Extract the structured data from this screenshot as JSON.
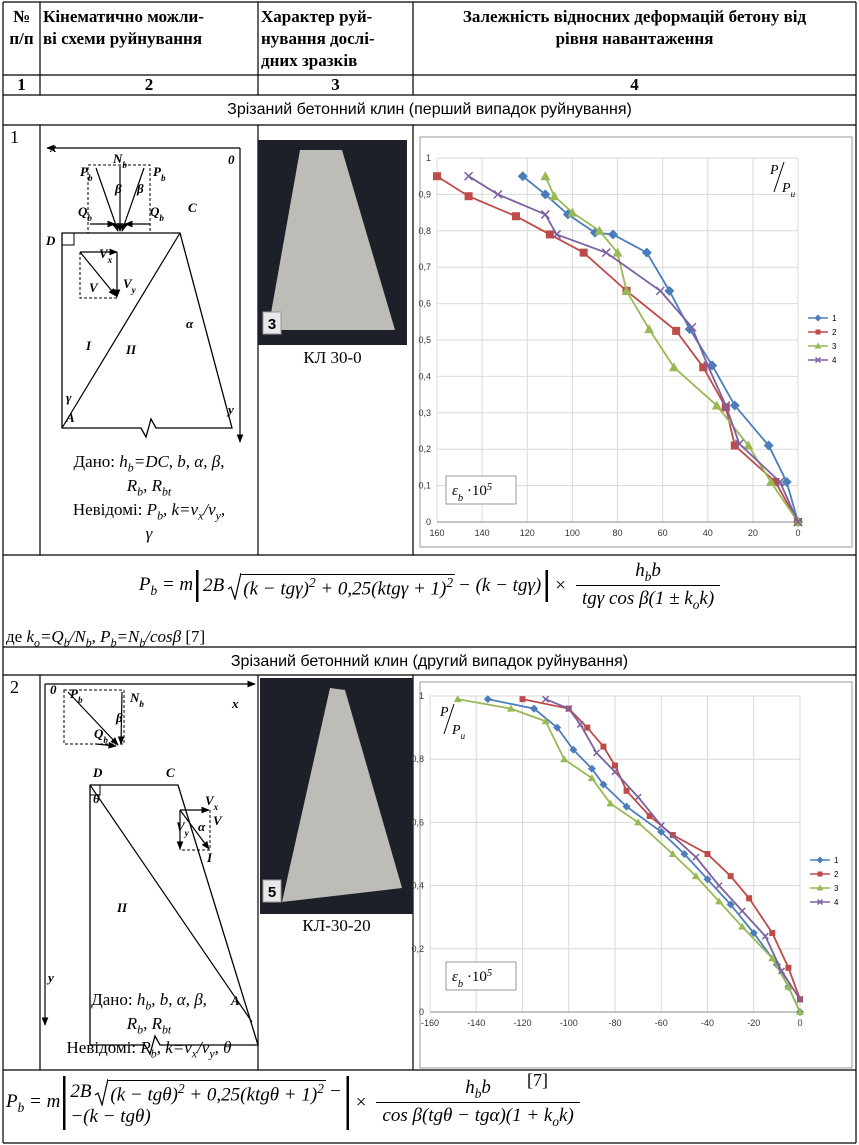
{
  "header": {
    "cells": [
      [
        "№",
        "п/п"
      ],
      [
        "Кінематично можли-",
        "ві схеми руйнування"
      ],
      [
        "Характер руй-",
        "нування дослі-",
        "дних зразків"
      ],
      [
        "Залежність відносних деформацій бетону від",
        "рівня навантаження"
      ]
    ],
    "numbers": [
      "1",
      "2",
      "3",
      "4"
    ]
  },
  "sections": [
    {
      "title": "Зрізаний бетонний клин (перший випадок руйнування)",
      "number": "1",
      "diagram": {
        "labels": [
          [
            {
              "i": "x"
            }
          ],
          [
            {
              "i": "0"
            }
          ],
          [
            {
              "i": "N"
            },
            {
              "sub": "b"
            }
          ],
          [
            {
              "i": "P"
            },
            {
              "sub": "b"
            }
          ],
          [
            {
              "i": "β"
            }
          ],
          [
            {
              "i": "β"
            }
          ],
          [
            {
              "i": "P"
            },
            {
              "sub": "b"
            }
          ],
          [
            {
              "i": "Q"
            },
            {
              "sub": "b"
            }
          ],
          [
            {
              "i": "Q"
            },
            {
              "sub": "b"
            }
          ],
          [
            {
              "i": "C"
            }
          ],
          [
            {
              "i": "D"
            }
          ],
          [
            {
              "i": "V"
            },
            {
              "sub": "x"
            }
          ],
          [
            {
              "i": "V"
            }
          ],
          [
            {
              "i": "V"
            },
            {
              "sub": "y"
            }
          ],
          [
            {
              "i": "α"
            }
          ],
          [
            {
              "i": "I"
            }
          ],
          [
            {
              "i": "II"
            }
          ],
          [
            {
              "i": "γ"
            }
          ],
          [
            {
              "i": "A"
            }
          ],
          [
            {
              "i": "y"
            }
          ]
        ],
        "given": [
          [
            {
              "t": "Дано: "
            },
            {
              "i": "h"
            },
            {
              "sub": "b"
            },
            {
              "i": "=DC, b, α, β,"
            }
          ],
          [
            {
              "i": "R"
            },
            {
              "sub": "b"
            },
            {
              "i": ", R"
            },
            {
              "sub": "bt"
            }
          ],
          [
            {
              "t": "Невідомі: "
            },
            {
              "i": "P"
            },
            {
              "sub": "b"
            },
            {
              "i": ",  k=v"
            },
            {
              "sub": "x"
            },
            {
              "i": "/v"
            },
            {
              "sub": "y"
            },
            {
              "i": ","
            }
          ],
          [
            {
              "i": "γ"
            }
          ]
        ]
      },
      "photo": {
        "tag": "3",
        "caption": "КЛ 30-0"
      },
      "chart": {
        "type": "line",
        "xlim": [
          160,
          0
        ],
        "ylim": [
          0,
          1
        ],
        "xticks": [
          160,
          140,
          120,
          100,
          80,
          60,
          40,
          20,
          0
        ],
        "yticks": [
          0,
          {
            "value": 0.1,
            "label": "0,1"
          },
          {
            "value": 0.2,
            "label": "0,2"
          },
          {
            "value": 0.3,
            "label": "0,3"
          },
          {
            "value": 0.4,
            "label": "0,4"
          },
          {
            "value": 0.5,
            "label": "0,5"
          },
          {
            "value": 0.6,
            "label": "0,6"
          },
          {
            "value": 0.7,
            "label": "0,7"
          },
          {
            "value": 0.8,
            "label": "0,8"
          },
          {
            "value": 0.9,
            "label": "0,9"
          },
          1
        ],
        "grid": true,
        "legend": "right",
        "y_label": {
          "num": "P",
          "den": "P",
          "den_sub": "u"
        },
        "x_label": [
          {
            "i": "ε"
          },
          {
            "sub": "b"
          },
          {
            "t": " ·10"
          },
          {
            "sup": "5"
          }
        ],
        "series": [
          {
            "name": "1",
            "color": "#4a7ebb",
            "marker": "diamond",
            "x": [
              122,
              112,
              102,
              90,
              82,
              67,
              57,
              48,
              38,
              28,
              13,
              5,
              0
            ],
            "values": [
              0.95,
              0.9,
              0.845,
              0.795,
              0.79,
              0.74,
              0.635,
              0.53,
              0.43,
              0.32,
              0.21,
              0.11,
              0
            ]
          },
          {
            "name": "2",
            "color": "#be4b48",
            "marker": "square",
            "x": [
              160,
              146,
              125,
              110,
              95,
              76,
              54,
              42,
              32,
              28,
              10,
              0
            ],
            "values": [
              0.95,
              0.895,
              0.84,
              0.79,
              0.74,
              0.635,
              0.525,
              0.425,
              0.315,
              0.21,
              0.11,
              0
            ]
          },
          {
            "name": "3",
            "color": "#98b954",
            "marker": "triangle",
            "x": [
              112,
              108,
              100,
              88,
              80,
              76,
              66,
              55,
              36,
              22,
              12,
              0
            ],
            "values": [
              0.95,
              0.895,
              0.85,
              0.8,
              0.74,
              0.635,
              0.53,
              0.425,
              0.32,
              0.21,
              0.11,
              0
            ]
          },
          {
            "name": "4",
            "color": "#7d60a0",
            "marker": "x",
            "x": [
              146,
              133,
              112,
              107,
              85,
              61,
              47,
              40,
              32,
              26,
              8,
              0
            ],
            "values": [
              0.95,
              0.9,
              0.845,
              0.79,
              0.74,
              0.635,
              0.535,
              0.43,
              0.32,
              0.215,
              0.11,
              0
            ]
          }
        ]
      },
      "formula": {
        "lhs": [
          {
            "i": "P"
          },
          {
            "sub": "b"
          },
          {
            "i": " = m"
          }
        ],
        "bracket": [
          {
            "i": "2B"
          }
        ],
        "root": [
          {
            "i": "(k − tgγ)"
          },
          {
            "sup": "2"
          },
          {
            "i": " + 0,25(ktgγ + 1)"
          },
          {
            "sup": "2"
          }
        ],
        "after": [
          {
            "i": " − (k − tgγ)"
          }
        ],
        "times": [
          {
            "t": "×"
          }
        ],
        "num": [
          {
            "i": "h"
          },
          {
            "sub": "b"
          },
          {
            "i": "b"
          }
        ],
        "den": [
          {
            "i": "tgγ cos β(1 ± k"
          },
          {
            "sub": "o"
          },
          {
            "i": "k)"
          }
        ]
      },
      "note": [
        {
          "t": "де "
        },
        {
          "i": "k"
        },
        {
          "sub": "o"
        },
        {
          "i": "=Q"
        },
        {
          "sub": "b"
        },
        {
          "i": "/N"
        },
        {
          "sub": "b"
        },
        {
          "i": ", P"
        },
        {
          "sub": "b"
        },
        {
          "i": "=N"
        },
        {
          "sub": "b"
        },
        {
          "i": "/cosβ"
        },
        {
          "t": " [7]"
        }
      ]
    },
    {
      "title": "Зрізаний бетонний клин (другий випадок руйнування)",
      "number": "2",
      "diagram": {
        "labels": [
          [
            {
              "i": "0"
            }
          ],
          [
            {
              "i": "P"
            },
            {
              "sub": "b"
            }
          ],
          [
            {
              "i": "N"
            },
            {
              "sub": "b"
            }
          ],
          [
            {
              "i": "β"
            }
          ],
          [
            {
              "i": "Q"
            },
            {
              "sub": "b"
            }
          ],
          [
            {
              "i": "x"
            }
          ],
          [
            {
              "i": "D"
            }
          ],
          [
            {
              "i": "C"
            }
          ],
          [
            {
              "i": "θ"
            }
          ],
          [
            {
              "i": "V"
            },
            {
              "sub": "x"
            }
          ],
          [
            {
              "i": "V"
            }
          ],
          [
            {
              "i": "V"
            },
            {
              "sub": "y"
            }
          ],
          [
            {
              "i": "α"
            }
          ],
          [
            {
              "i": "I"
            }
          ],
          [
            {
              "i": "II"
            }
          ],
          [
            {
              "i": "A"
            }
          ],
          [
            {
              "i": "y"
            }
          ]
        ],
        "given": [
          [
            {
              "t": "Дано: "
            },
            {
              "i": "h"
            },
            {
              "sub": "b"
            },
            {
              "i": ", b, α, β,"
            }
          ],
          [
            {
              "i": "R"
            },
            {
              "sub": "b"
            },
            {
              "i": ", R"
            },
            {
              "sub": "bt"
            }
          ],
          [
            {
              "t": "Невідомі: "
            },
            {
              "i": "P"
            },
            {
              "sub": "b"
            },
            {
              "i": ", k=v"
            },
            {
              "sub": "x"
            },
            {
              "i": "/v"
            },
            {
              "sub": "y"
            },
            {
              "i": ", θ"
            }
          ]
        ]
      },
      "photo": {
        "tag": "5",
        "caption": "КЛ-30-20"
      },
      "chart": {
        "type": "line",
        "xlim": [
          -160,
          0
        ],
        "ylim": [
          0,
          1
        ],
        "xticks": [
          -160,
          -140,
          -120,
          -100,
          -80,
          -60,
          -40,
          -20,
          0
        ],
        "yticks": [
          0,
          {
            "value": 0.2,
            "label": "0,2"
          },
          {
            "value": 0.4,
            "label": "0,4"
          },
          {
            "value": 0.6,
            "label": "0,6"
          },
          {
            "value": 0.8,
            "label": "0,8"
          },
          1
        ],
        "grid": true,
        "legend": "right",
        "y_label": {
          "num": "P",
          "den": "P",
          "den_sub": "u"
        },
        "x_label": [
          {
            "i": "ε"
          },
          {
            "sub": "b"
          },
          {
            "t": " ·10"
          },
          {
            "sup": "5"
          }
        ],
        "series": [
          {
            "name": "1",
            "color": "#4a7ebb",
            "marker": "diamond",
            "x": [
              -135,
              -115,
              -105,
              -98,
              -90,
              -85,
              -75,
              -60,
              -50,
              -40,
              -30,
              -20,
              -10,
              -5,
              0
            ],
            "values": [
              0.99,
              0.96,
              0.9,
              0.83,
              0.77,
              0.72,
              0.65,
              0.57,
              0.5,
              0.42,
              0.34,
              0.25,
              0.15,
              0.08,
              0
            ]
          },
          {
            "name": "2",
            "color": "#be4b48",
            "marker": "square",
            "x": [
              -120,
              -100,
              -92,
              -85,
              -80,
              -75,
              -65,
              -55,
              -40,
              -30,
              -22,
              -12,
              -5,
              0
            ],
            "values": [
              0.99,
              0.96,
              0.9,
              0.84,
              0.78,
              0.7,
              0.62,
              0.56,
              0.5,
              0.43,
              0.36,
              0.25,
              0.14,
              0.04
            ]
          },
          {
            "name": "3",
            "color": "#98b954",
            "marker": "triangle",
            "x": [
              -148,
              -125,
              -110,
              -102,
              -90,
              -82,
              -70,
              -55,
              -45,
              -35,
              -25,
              -12,
              -5,
              0
            ],
            "values": [
              0.99,
              0.96,
              0.92,
              0.8,
              0.74,
              0.66,
              0.6,
              0.5,
              0.43,
              0.35,
              0.27,
              0.17,
              0.08,
              0
            ]
          },
          {
            "name": "4",
            "color": "#7d60a0",
            "marker": "x",
            "x": [
              -110,
              -100,
              -95,
              -88,
              -80,
              -70,
              -60,
              -45,
              -35,
              -25,
              -15,
              -8,
              0
            ],
            "values": [
              0.99,
              0.96,
              0.91,
              0.82,
              0.76,
              0.68,
              0.59,
              0.49,
              0.4,
              0.32,
              0.24,
              0.13,
              0.04
            ]
          }
        ]
      },
      "formula": {
        "lhs": [
          {
            "i": "P"
          },
          {
            "sub": "b"
          },
          {
            "i": " = m"
          }
        ],
        "bracket": [
          {
            "i": "2B"
          }
        ],
        "root": [
          {
            "i": "(k − tgθ)"
          },
          {
            "sup": "2"
          },
          {
            "i": " + 0,25(ktgθ + 1)"
          },
          {
            "sup": "2"
          }
        ],
        "row1_end": [
          {
            "i": " −"
          }
        ],
        "row2": [
          {
            "i": "−(k − tgθ)"
          }
        ],
        "times": [
          {
            "t": "×"
          }
        ],
        "num": [
          {
            "i": "h"
          },
          {
            "sub": "b"
          },
          {
            "i": "b"
          }
        ],
        "den": [
          {
            "i": "cos β(tgθ − tgα)(1 + k"
          },
          {
            "sub": "o"
          },
          {
            "i": "k)"
          }
        ],
        "ref": [
          {
            "t": "[7]"
          }
        ]
      }
    }
  ]
}
